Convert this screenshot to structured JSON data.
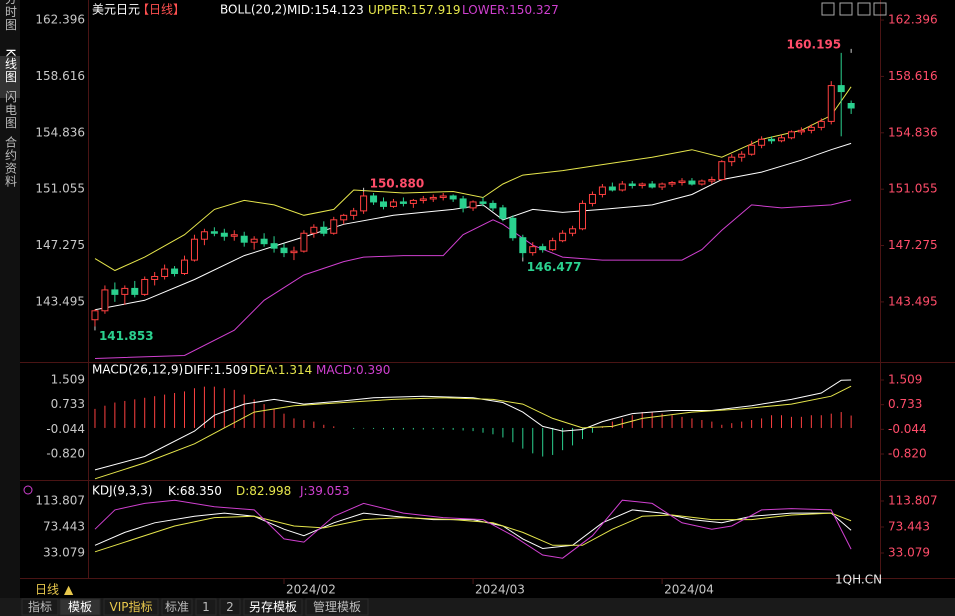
{
  "sidebar": [
    "分时图",
    "K线图",
    "闪电图",
    "合约资料"
  ],
  "header": {
    "symbol": "美元日元",
    "period": "【日线】",
    "indicator": "BOLL(20,2)",
    "legend": [
      {
        "name": "MID:",
        "value": 154.123,
        "color": "#ffffff"
      },
      {
        "name": "UPPER:",
        "value": 157.919,
        "color": "#e6e64c"
      },
      {
        "name": "LOWER:",
        "value": 150.327,
        "color": "#d040d0"
      }
    ]
  },
  "xlim": [
    -0.7,
    78.9
  ],
  "price": {
    "ylim": [
      139.6,
      163.07
    ],
    "yticks": [
      162.396,
      158.616,
      154.836,
      151.055,
      147.275,
      143.495
    ],
    "up_color": "#ff4040",
    "down_color": "#2bd18f",
    "candles": [
      [
        142.3,
        143.0,
        141.853,
        142.9
      ],
      [
        142.9,
        144.6,
        142.7,
        144.3
      ],
      [
        144.3,
        144.8,
        143.5,
        144.0
      ],
      [
        144.0,
        144.6,
        143.3,
        144.4
      ],
      [
        144.4,
        144.9,
        143.8,
        144.0
      ],
      [
        144.0,
        145.2,
        143.9,
        145.0
      ],
      [
        145.0,
        145.5,
        144.6,
        145.2
      ],
      [
        145.2,
        146.0,
        145.0,
        145.7
      ],
      [
        145.7,
        145.9,
        145.2,
        145.4
      ],
      [
        145.4,
        146.6,
        145.3,
        146.3
      ],
      [
        146.3,
        148.0,
        146.2,
        147.7
      ],
      [
        147.7,
        148.4,
        147.3,
        148.2
      ],
      [
        148.2,
        148.5,
        147.9,
        148.1
      ],
      [
        148.1,
        148.4,
        147.6,
        147.9
      ],
      [
        147.9,
        148.3,
        147.6,
        148.0
      ],
      [
        147.9,
        148.2,
        147.2,
        147.5
      ],
      [
        147.5,
        147.9,
        147.0,
        147.7
      ],
      [
        147.7,
        148.1,
        147.2,
        147.4
      ],
      [
        147.4,
        147.9,
        146.8,
        147.1
      ],
      [
        147.1,
        147.4,
        146.5,
        146.8
      ],
      [
        146.8,
        147.2,
        146.3,
        146.9
      ],
      [
        146.9,
        148.3,
        146.8,
        148.1
      ],
      [
        148.1,
        148.7,
        147.8,
        148.5
      ],
      [
        148.5,
        148.9,
        147.9,
        148.1
      ],
      [
        148.1,
        149.2,
        148.0,
        149.0
      ],
      [
        149.0,
        149.4,
        148.7,
        149.3
      ],
      [
        149.3,
        149.8,
        149.0,
        149.6
      ],
      [
        149.6,
        150.88,
        149.4,
        150.6
      ],
      [
        150.6,
        150.8,
        150.0,
        150.2
      ],
      [
        150.2,
        150.5,
        149.7,
        149.9
      ],
      [
        149.9,
        150.4,
        149.8,
        150.2
      ],
      [
        150.2,
        150.5,
        149.9,
        150.1
      ],
      [
        150.1,
        150.4,
        149.8,
        150.3
      ],
      [
        150.3,
        150.6,
        150.1,
        150.4
      ],
      [
        150.4,
        150.7,
        150.2,
        150.5
      ],
      [
        150.5,
        150.8,
        150.3,
        150.6
      ],
      [
        150.6,
        150.7,
        150.2,
        150.4
      ],
      [
        150.4,
        150.6,
        149.5,
        149.8
      ],
      [
        149.8,
        150.3,
        149.6,
        150.2
      ],
      [
        150.2,
        150.5,
        149.9,
        150.1
      ],
      [
        150.1,
        150.3,
        149.6,
        149.8
      ],
      [
        149.8,
        150.0,
        148.9,
        149.1
      ],
      [
        149.1,
        149.3,
        147.6,
        147.8
      ],
      [
        147.8,
        148.0,
        146.477,
        146.8
      ],
      [
        146.8,
        147.5,
        146.6,
        147.2
      ],
      [
        147.2,
        147.4,
        146.8,
        147.0
      ],
      [
        147.0,
        147.8,
        146.9,
        147.6
      ],
      [
        147.6,
        148.3,
        147.5,
        148.1
      ],
      [
        148.1,
        148.6,
        147.9,
        148.4
      ],
      [
        148.4,
        150.3,
        148.3,
        150.1
      ],
      [
        150.1,
        150.9,
        149.9,
        150.7
      ],
      [
        150.7,
        151.4,
        150.5,
        151.2
      ],
      [
        151.2,
        151.5,
        150.9,
        151.0
      ],
      [
        151.0,
        151.6,
        150.9,
        151.4
      ],
      [
        151.4,
        151.6,
        151.1,
        151.3
      ],
      [
        151.3,
        151.5,
        151.1,
        151.4
      ],
      [
        151.4,
        151.6,
        151.1,
        151.2
      ],
      [
        151.2,
        151.5,
        151.0,
        151.4
      ],
      [
        151.4,
        151.6,
        151.2,
        151.5
      ],
      [
        151.5,
        151.8,
        151.3,
        151.6
      ],
      [
        151.6,
        151.8,
        151.3,
        151.4
      ],
      [
        151.4,
        151.7,
        151.3,
        151.6
      ],
      [
        151.6,
        151.9,
        151.4,
        151.7
      ],
      [
        151.7,
        153.0,
        151.6,
        152.9
      ],
      [
        152.9,
        153.4,
        152.6,
        153.2
      ],
      [
        153.2,
        153.6,
        152.9,
        153.4
      ],
      [
        153.4,
        154.3,
        153.3,
        154.0
      ],
      [
        154.0,
        154.6,
        153.8,
        154.4
      ],
      [
        154.4,
        154.6,
        154.1,
        154.3
      ],
      [
        154.3,
        154.7,
        154.2,
        154.5
      ],
      [
        154.5,
        155.0,
        154.4,
        154.9
      ],
      [
        154.9,
        155.2,
        154.7,
        155.0
      ],
      [
        155.0,
        155.4,
        154.8,
        155.2
      ],
      [
        155.2,
        155.8,
        155.0,
        155.6
      ],
      [
        155.6,
        158.3,
        155.4,
        158.0
      ],
      [
        158.0,
        160.195,
        154.6,
        157.6
      ],
      [
        156.8,
        157.0,
        156.1,
        156.5
      ]
    ],
    "lines": [
      {
        "color": "#e6e64c",
        "x": [
          0,
          2,
          5,
          9,
          12,
          15,
          18,
          21,
          24,
          26,
          31,
          36,
          39,
          41,
          43,
          47,
          51,
          56,
          60,
          63,
          67,
          71,
          74,
          76
        ],
        "values": [
          146.4,
          145.6,
          146.5,
          148.0,
          149.7,
          150.3,
          150.0,
          149.3,
          149.7,
          151.0,
          150.8,
          150.9,
          150.5,
          151.4,
          152.0,
          152.3,
          152.7,
          153.2,
          153.7,
          153.2,
          154.4,
          155.0,
          156.0,
          157.919
        ]
      },
      {
        "color": "#ffffff",
        "x": [
          0,
          5,
          10,
          15,
          20,
          25,
          30,
          36,
          39,
          41,
          44,
          47,
          51,
          56,
          60,
          63,
          67,
          71,
          74,
          76
        ],
        "values": [
          142.97,
          143.6,
          145.0,
          146.6,
          147.65,
          148.7,
          149.3,
          149.7,
          150.0,
          149.0,
          149.7,
          149.5,
          149.7,
          150.0,
          150.7,
          151.7,
          152.2,
          153.0,
          153.7,
          154.123
        ]
      },
      {
        "color": "#d040d0",
        "x": [
          0,
          9,
          14,
          17,
          21,
          25,
          27,
          31,
          35,
          37,
          40,
          41,
          44,
          47,
          51,
          59,
          61,
          63,
          66,
          69,
          74,
          76
        ],
        "values": [
          139.7,
          139.9,
          141.6,
          143.6,
          145.3,
          146.2,
          146.5,
          146.6,
          146.6,
          148.0,
          149.0,
          148.7,
          147.3,
          146.5,
          146.3,
          146.3,
          147.0,
          148.3,
          150.0,
          149.8,
          150.0,
          150.327
        ]
      }
    ],
    "annotations": [
      {
        "index": 76,
        "value": 160.195,
        "label": "160.195",
        "color": "#ff4d6a",
        "side": "top"
      },
      {
        "index": 27,
        "value": 150.88,
        "label": "150.880",
        "color": "#ff4d6a",
        "side": "top"
      },
      {
        "index": 0,
        "value": 141.853,
        "label": "141.853",
        "color": "#2bd18f",
        "side": "bottom"
      },
      {
        "index": 43,
        "value": 146.477,
        "label": "146.477",
        "color": "#2bd18f",
        "side": "bottom"
      }
    ]
  },
  "macd": {
    "title": "MACD(26,12,9)",
    "legend": [
      {
        "name": "DIFF:",
        "value": 1.509,
        "color": "#ffffff"
      },
      {
        "name": "DEA:",
        "value": 1.314,
        "color": "#e6e64c"
      },
      {
        "name": "MACD:",
        "value": {
          "value": 0.39,
          "label": "0.390"
        },
        "color": "#d040d0"
      }
    ],
    "ylim": [
      -1.576,
      2.013
    ],
    "yticks": [
      1.509,
      0.733,
      -0.044,
      {
        "value": -0.82,
        "label": "-0.820"
      }
    ],
    "hist": [
      0.6,
      0.7,
      0.8,
      0.85,
      0.9,
      0.95,
      1.0,
      1.05,
      1.1,
      1.15,
      1.25,
      1.3,
      1.3,
      1.25,
      1.2,
      1.05,
      0.9,
      0.75,
      0.6,
      0.45,
      0.3,
      0.25,
      0.2,
      0.1,
      0.05,
      0.0,
      -0.03,
      -0.02,
      -0.03,
      -0.04,
      -0.05,
      -0.05,
      -0.05,
      -0.05,
      -0.04,
      -0.05,
      -0.06,
      -0.08,
      -0.1,
      -0.15,
      -0.2,
      -0.3,
      -0.45,
      -0.65,
      -0.8,
      -0.9,
      -0.85,
      -0.7,
      -0.55,
      -0.35,
      -0.15,
      0.05,
      0.2,
      0.3,
      0.4,
      0.5,
      0.5,
      0.45,
      0.4,
      0.35,
      0.3,
      0.25,
      0.2,
      0.1,
      0.15,
      0.2,
      0.25,
      0.3,
      0.4,
      0.4,
      0.35,
      0.35,
      0.4,
      0.4,
      0.45,
      0.5,
      0.39
    ],
    "lines": [
      {
        "color": "#ffffff",
        "x": [
          0,
          5,
          10,
          12,
          15,
          18,
          21,
          25,
          28,
          33,
          38,
          41,
          43,
          45,
          47,
          49,
          51,
          54,
          58,
          62,
          66,
          70,
          73,
          75,
          76
        ],
        "values": [
          -1.32,
          -0.9,
          -0.1,
          0.4,
          0.75,
          0.9,
          0.75,
          0.85,
          0.95,
          1.0,
          0.95,
          0.8,
          0.5,
          0.05,
          -0.1,
          -0.05,
          0.2,
          0.45,
          0.55,
          0.55,
          0.7,
          0.9,
          1.1,
          1.5,
          1.509
        ]
      },
      {
        "color": "#e6e64c",
        "x": [
          0,
          5,
          10,
          13,
          16,
          20,
          25,
          30,
          35,
          40,
          43,
          46,
          49,
          52,
          55,
          60,
          65,
          70,
          74,
          76
        ],
        "values": [
          -1.6,
          -1.1,
          -0.5,
          0.0,
          0.5,
          0.7,
          0.8,
          0.9,
          0.95,
          0.9,
          0.75,
          0.3,
          0.0,
          0.05,
          0.3,
          0.5,
          0.6,
          0.75,
          1.0,
          1.314
        ]
      }
    ]
  },
  "kdj": {
    "title": "KDJ(9,3,3)",
    "legend": [
      {
        "name": "K:",
        "value": {
          "value": 68.35,
          "label": "68.350"
        },
        "color": "#ffffff"
      },
      {
        "name": "D:",
        "value": 82.998,
        "color": "#e6e64c"
      },
      {
        "name": "J:",
        "value": 39.053,
        "color": "#d040d0"
      }
    ],
    "ylim": [
      -5.74,
      143.3
    ],
    "yticks": [
      113.807,
      73.443,
      33.079
    ],
    "lines": [
      {
        "color": "#ffffff",
        "x": [
          0,
          3,
          6,
          10,
          13,
          16,
          19,
          21,
          24,
          27,
          30,
          34,
          38,
          41,
          43,
          45,
          48,
          51,
          54,
          57,
          60,
          63,
          66,
          70,
          74,
          76
        ],
        "values": [
          45,
          65,
          80,
          90,
          95,
          90,
          70,
          60,
          80,
          95,
          90,
          85,
          85,
          75,
          55,
          40,
          45,
          80,
          100,
          95,
          85,
          80,
          90,
          95,
          95,
          68.35
        ]
      },
      {
        "color": "#e6e64c",
        "x": [
          0,
          4,
          8,
          12,
          16,
          20,
          23,
          27,
          31,
          36,
          40,
          43,
          46,
          49,
          52,
          55,
          58,
          62,
          66,
          70,
          74,
          76
        ],
        "values": [
          35,
          55,
          75,
          88,
          90,
          75,
          72,
          85,
          88,
          85,
          80,
          65,
          45,
          45,
          70,
          90,
          92,
          85,
          85,
          92,
          95,
          82.998
        ]
      },
      {
        "color": "#d040d0",
        "x": [
          0,
          2,
          5,
          8,
          12,
          16,
          19,
          21,
          24,
          27,
          31,
          35,
          39,
          42,
          45,
          47,
          50,
          53,
          56,
          59,
          62,
          64,
          67,
          70,
          74,
          76
        ],
        "values": [
          70,
          100,
          110,
          115,
          105,
          100,
          55,
          50,
          90,
          110,
          95,
          88,
          85,
          60,
          30,
          25,
          60,
          115,
          110,
          80,
          70,
          75,
          100,
          102,
          100,
          39.053
        ]
      }
    ]
  },
  "date_ticks": [
    {
      "index": 19,
      "label": "2024/02"
    },
    {
      "index": 38,
      "label": "2024/03"
    },
    {
      "index": 57,
      "label": "2024/04"
    }
  ],
  "footer": {
    "period": "日线",
    "arrow": "▲",
    "watermark": "1QH.CN"
  },
  "tabs": [
    "指标",
    "模板",
    "VIP指标",
    "标准",
    "1",
    "2",
    "另存模板",
    "管理模板"
  ]
}
